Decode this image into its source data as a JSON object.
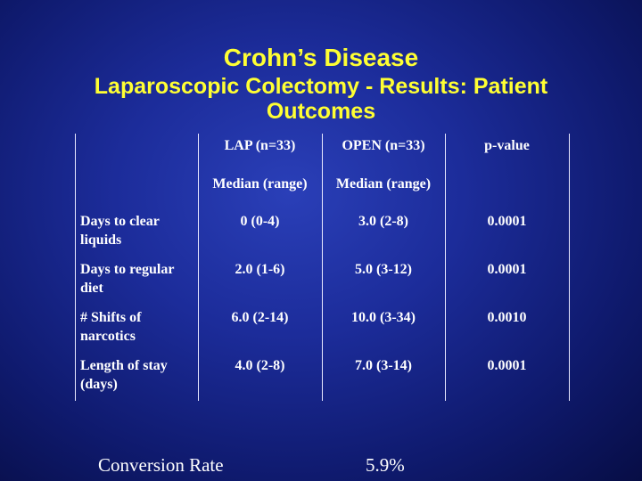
{
  "title": {
    "line1": "Crohn’s Disease",
    "line2": "Laparoscopic Colectomy - Results: Patient",
    "line3": "Outcomes"
  },
  "table": {
    "headers": [
      "LAP (n=33)",
      "OPEN (n=33)",
      "p-value"
    ],
    "subheaders": [
      "Median (range)",
      "Median (range)"
    ],
    "rows": [
      {
        "label": "Days to clear liquids",
        "lap": "0 (0-4)",
        "open": "3.0 (2-8)",
        "p": "0.0001"
      },
      {
        "label": "Days to regular diet",
        "lap": "2.0 (1-6)",
        "open": "5.0 (3-12)",
        "p": "0.0001"
      },
      {
        "label": "# Shifts of narcotics",
        "lap": "6.0 (2-14)",
        "open": "10.0 (3-34)",
        "p": "0.0010"
      },
      {
        "label": "Length of stay (days)",
        "lap": "4.0 (2-8)",
        "open": "7.0 (3-14)",
        "p": "0.0001"
      }
    ]
  },
  "footer": {
    "label": "Conversion Rate",
    "value": "5.9%"
  },
  "colors": {
    "title": "#ffff33",
    "text": "#ffffff",
    "background": "#1c2c9a"
  }
}
